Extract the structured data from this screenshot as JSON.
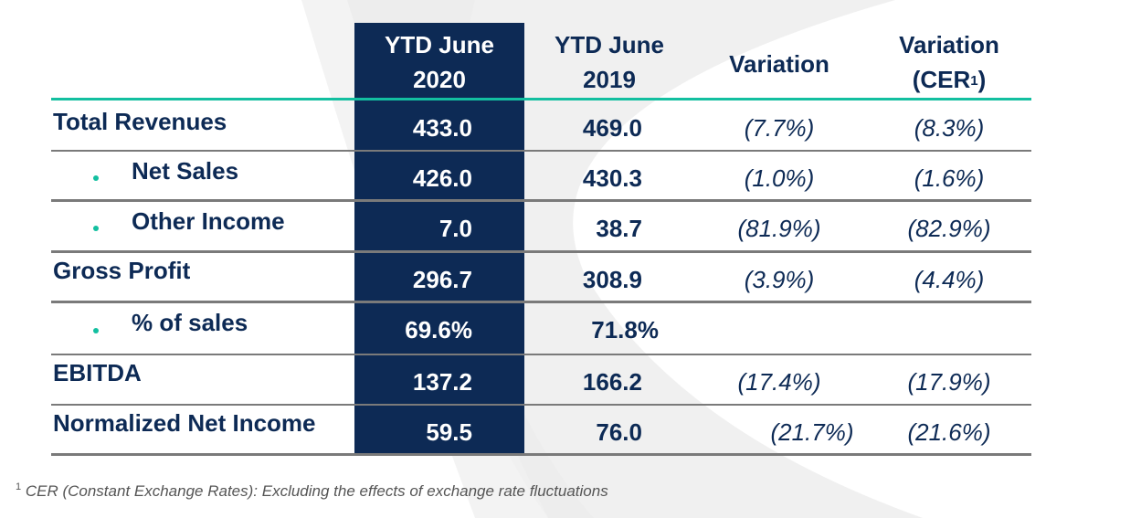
{
  "colors": {
    "accent_teal": "#13bfa0",
    "highlight_column": "#0d2a55",
    "text_navy": "#0d2a55",
    "divider_gray": "#7a7a7a",
    "footnote_gray": "#555555"
  },
  "table": {
    "headers": {
      "col_2020_line1": "YTD June",
      "col_2020_line2": "2020",
      "col_2019_line1": "YTD June",
      "col_2019_line2": "2019",
      "col_variation": "Variation",
      "col_cer_line1": "Variation",
      "col_cer_line2": "(CER",
      "col_cer_sup": "1",
      "col_cer_close": ")"
    },
    "rows": [
      {
        "label": "Total Revenues",
        "bullet": false,
        "ytd_2020": "433.0",
        "ytd_2019": "469.0",
        "variation": "(7.7%)",
        "variation_cer": "(8.3%)"
      },
      {
        "label": "Net Sales",
        "bullet": true,
        "ytd_2020": "426.0",
        "ytd_2019": "430.3",
        "variation": "(1.0%)",
        "variation_cer": "(1.6%)"
      },
      {
        "label": "Other Income",
        "bullet": true,
        "ytd_2020": "7.0",
        "ytd_2019": "38.7",
        "variation": "(81.9%)",
        "variation_cer": "(82.9%)"
      },
      {
        "label": "Gross Profit",
        "bullet": false,
        "ytd_2020": "296.7",
        "ytd_2019": "308.9",
        "variation": "(3.9%)",
        "variation_cer": "(4.4%)"
      },
      {
        "label": "% of sales",
        "bullet": true,
        "ytd_2020": "69.6%",
        "ytd_2019": "71.8%",
        "variation": "",
        "variation_cer": ""
      },
      {
        "label": "EBITDA",
        "bullet": false,
        "ytd_2020": "137.2",
        "ytd_2019": "166.2",
        "variation": "(17.4%)",
        "variation_cer": "(17.9%)"
      },
      {
        "label": "Normalized Net Income",
        "bullet": false,
        "ytd_2020": "59.5",
        "ytd_2019": "76.0",
        "variation": "(21.7%)",
        "variation_cer": "(21.6%)"
      }
    ]
  },
  "footnote": {
    "marker": "1",
    "text": " CER (Constant Exchange Rates): Excluding the effects of exchange rate fluctuations"
  }
}
